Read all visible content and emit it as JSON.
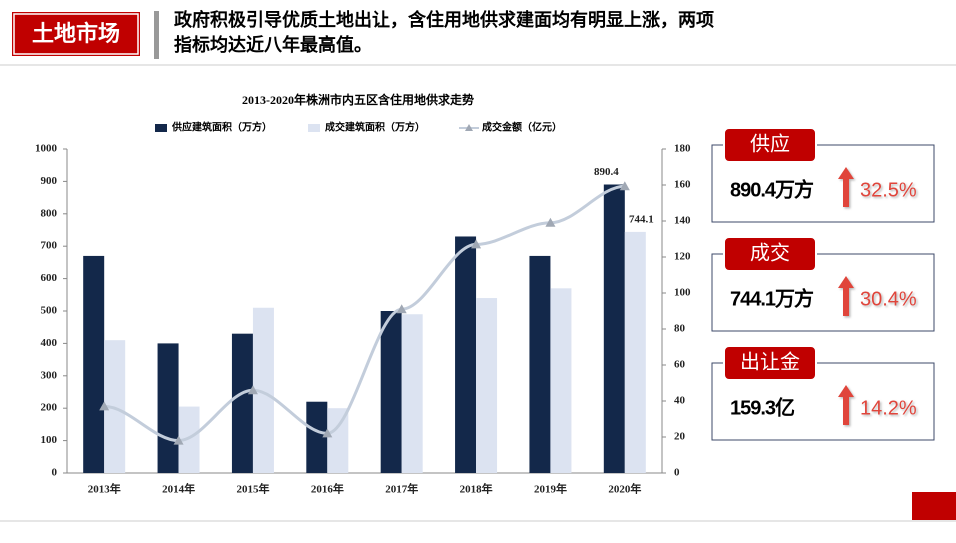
{
  "header": {
    "title": "土地市场",
    "headline": [
      "政府积极引导优质土地出让，含住用地供求建面均有明显上涨，两项",
      "指标均达近八年最高值。"
    ]
  },
  "chart_data": {
    "type": "bar",
    "title": "2013-2020年株洲市内五区含住用地供求走势",
    "categories": [
      "2013年",
      "2014年",
      "2015年",
      "2016年",
      "2017年",
      "2018年",
      "2019年",
      "2020年"
    ],
    "series": [
      {
        "name": "供应建筑面积（万方）",
        "color": "#13284a",
        "values": [
          670,
          400,
          430,
          220,
          500,
          730,
          670,
          890.4
        ],
        "value_labels": [
          null,
          null,
          null,
          null,
          null,
          null,
          null,
          "890.4"
        ]
      },
      {
        "name": "成交建筑面积（万方）",
        "color": "#dce3f1",
        "values": [
          410,
          205,
          510,
          200,
          490,
          540,
          570,
          744.1
        ],
        "value_labels": [
          null,
          null,
          null,
          null,
          null,
          null,
          null,
          "744.1"
        ]
      },
      {
        "name": "成交金额（亿元）",
        "color": "#c3cddb",
        "type": "line",
        "axis": "y2",
        "values": [
          37,
          18,
          46,
          22,
          91,
          127,
          139,
          159.3
        ]
      }
    ],
    "ylim": [
      0,
      1000
    ],
    "yticks": [
      0,
      100,
      200,
      300,
      400,
      500,
      600,
      700,
      800,
      900,
      1000
    ],
    "y2lim": [
      0,
      180
    ],
    "y2ticks": [
      0,
      20,
      40,
      60,
      80,
      100,
      120,
      140,
      160,
      180
    ],
    "grid": false
  },
  "panels": [
    {
      "label": "供应",
      "value": "890.4万方",
      "change": "32.5%"
    },
    {
      "label": "成交",
      "value": "744.1万方",
      "change": "30.4%"
    },
    {
      "label": "出让金",
      "value": "159.3亿",
      "change": "14.2%"
    }
  ]
}
